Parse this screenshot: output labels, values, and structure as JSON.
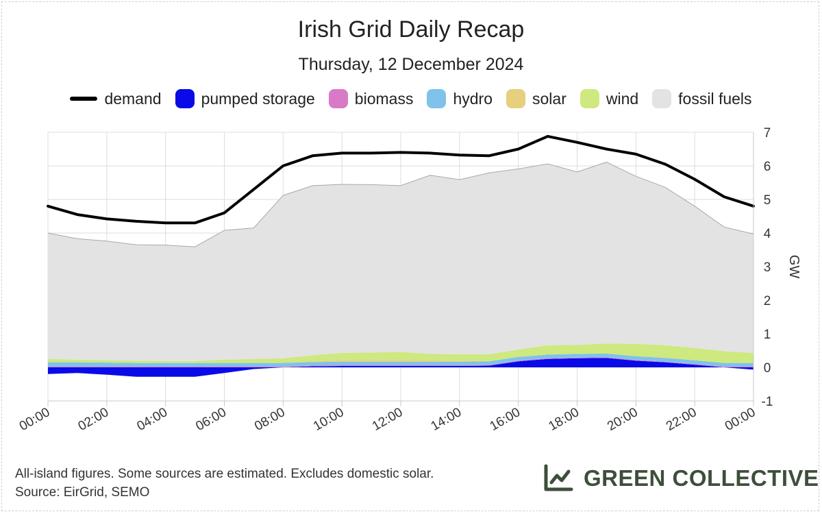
{
  "header": {
    "title": "Irish Grid Daily Recap",
    "subtitle": "Thursday, 12 December 2024"
  },
  "footer": {
    "note": "All-island figures. Some sources are estimated. Excludes domestic solar.",
    "source": "Source: EirGrid, SEMO",
    "brand": "GREEN COLLECTIVE"
  },
  "colors": {
    "demand": "#000000",
    "pumped_storage": "#0a0ae8",
    "biomass": "#d97ac9",
    "hydro": "#7fc2ea",
    "solar": "#e6cf7d",
    "wind": "#cde97f",
    "fossil_fuels": "#e3e3e3",
    "brand": "#3d4f3a"
  },
  "legend": [
    {
      "key": "demand",
      "label": "demand"
    },
    {
      "key": "pumped_storage",
      "label": "pumped storage"
    },
    {
      "key": "biomass",
      "label": "biomass"
    },
    {
      "key": "hydro",
      "label": "hydro"
    },
    {
      "key": "solar",
      "label": "solar"
    },
    {
      "key": "wind",
      "label": "wind"
    },
    {
      "key": "fossil_fuels",
      "label": "fossil fuels"
    }
  ],
  "chart_data": {
    "type": "area",
    "title": "Irish Grid Daily Recap",
    "subtitle": "Thursday, 12 December 2024",
    "ylabel": "GW",
    "ylim": [
      -1,
      7
    ],
    "y_ticks": [
      -1,
      0,
      1,
      2,
      3,
      4,
      5,
      6,
      7
    ],
    "xlim": [
      0,
      24
    ],
    "x_ticks": [
      "00:00",
      "02:00",
      "04:00",
      "06:00",
      "08:00",
      "10:00",
      "12:00",
      "14:00",
      "16:00",
      "18:00",
      "20:00",
      "22:00",
      "00:00"
    ],
    "grid": true,
    "legend_position": "top",
    "x_hours": [
      0,
      1,
      2,
      3,
      4,
      5,
      6,
      7,
      8,
      9,
      10,
      11,
      12,
      13,
      14,
      15,
      16,
      17,
      18,
      19,
      20,
      21,
      22,
      23,
      24
    ],
    "series": [
      {
        "name": "pumped storage",
        "values": [
          -0.2,
          -0.17,
          -0.22,
          -0.28,
          -0.28,
          -0.28,
          -0.17,
          -0.05,
          0.0,
          0.03,
          0.04,
          0.04,
          0.04,
          0.04,
          0.04,
          0.05,
          0.18,
          0.25,
          0.27,
          0.28,
          0.2,
          0.15,
          0.08,
          0.0,
          -0.07
        ]
      },
      {
        "name": "biomass",
        "values": [
          0.02,
          0.02,
          0.02,
          0.02,
          0.02,
          0.02,
          0.02,
          0.02,
          0.02,
          0.02,
          0.02,
          0.02,
          0.02,
          0.02,
          0.02,
          0.02,
          0.02,
          0.02,
          0.02,
          0.02,
          0.02,
          0.02,
          0.02,
          0.02,
          0.02
        ]
      },
      {
        "name": "hydro",
        "values": [
          0.13,
          0.13,
          0.12,
          0.11,
          0.11,
          0.11,
          0.11,
          0.11,
          0.11,
          0.11,
          0.11,
          0.11,
          0.11,
          0.11,
          0.11,
          0.11,
          0.11,
          0.11,
          0.11,
          0.11,
          0.11,
          0.11,
          0.11,
          0.11,
          0.11
        ]
      },
      {
        "name": "solar",
        "values": [
          0,
          0,
          0,
          0,
          0,
          0,
          0,
          0,
          0.01,
          0.02,
          0.04,
          0.05,
          0.05,
          0.04,
          0.02,
          0.01,
          0,
          0,
          0,
          0,
          0,
          0,
          0,
          0,
          0
        ]
      },
      {
        "name": "wind",
        "values": [
          0.1,
          0.08,
          0.07,
          0.07,
          0.06,
          0.06,
          0.1,
          0.12,
          0.13,
          0.18,
          0.22,
          0.22,
          0.24,
          0.19,
          0.2,
          0.2,
          0.22,
          0.28,
          0.27,
          0.3,
          0.37,
          0.38,
          0.37,
          0.35,
          0.3
        ]
      },
      {
        "name": "fossil fuels",
        "values": [
          3.75,
          3.6,
          3.55,
          3.45,
          3.45,
          3.4,
          3.85,
          3.9,
          4.85,
          5.05,
          5.02,
          5.0,
          4.95,
          5.32,
          5.2,
          5.4,
          5.38,
          5.4,
          5.15,
          5.4,
          4.99,
          4.7,
          4.22,
          3.7,
          3.54
        ]
      }
    ],
    "demand": {
      "name": "demand",
      "values": [
        4.8,
        4.55,
        4.42,
        4.35,
        4.3,
        4.3,
        4.6,
        5.3,
        6.0,
        6.3,
        6.38,
        6.38,
        6.4,
        6.38,
        6.32,
        6.3,
        6.5,
        6.88,
        6.7,
        6.5,
        6.35,
        6.05,
        5.6,
        5.08,
        4.8
      ]
    }
  }
}
